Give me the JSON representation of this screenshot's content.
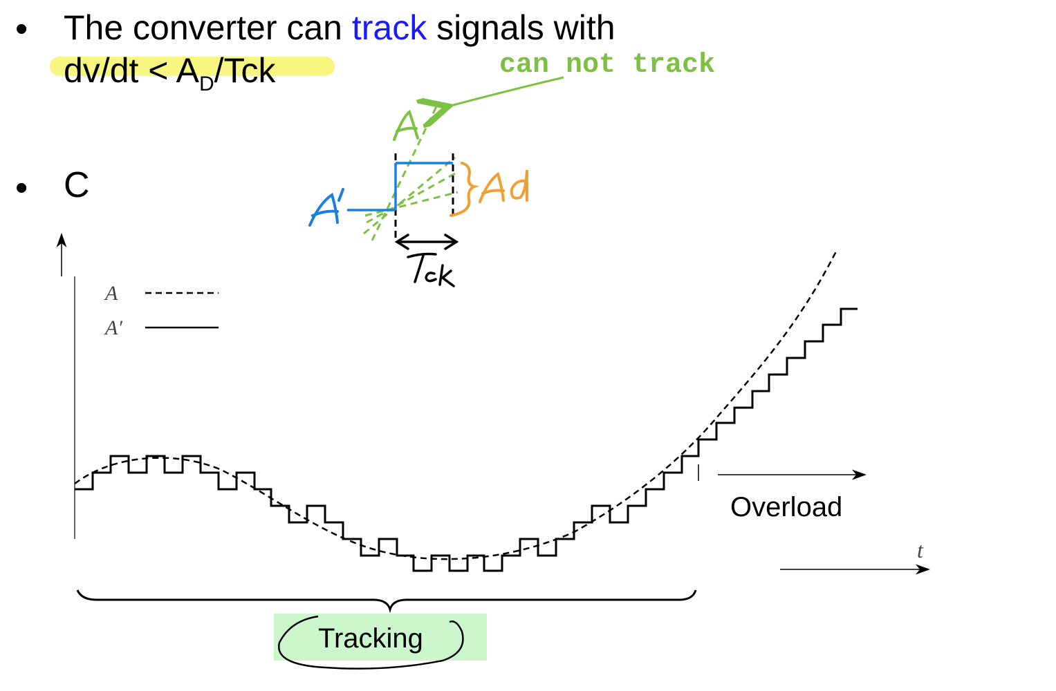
{
  "bullets": {
    "line1_prefix": "The converter can ",
    "line1_emph": "track",
    "line1_suffix": " signals with",
    "line2_a": "dv/dt < A",
    "line2_sub": "D",
    "line2_b": "/Tck",
    "second": "C",
    "marker": "•"
  },
  "annotations": {
    "cannot_track": "can not track",
    "label_A": "A",
    "label_A_prime": "A'",
    "label_Ad": "Ad",
    "label_Tck": "Tck"
  },
  "plot": {
    "legend": [
      {
        "label": "A",
        "style": "dashed"
      },
      {
        "label": "A′",
        "style": "solid"
      }
    ],
    "axis_t": "t",
    "overload": "Overload",
    "tracking": "Tracking"
  },
  "colors": {
    "highlight": "#f5f56b",
    "track_word": "#1a1aff",
    "green": "#7cc142",
    "blue": "#1a7fe0",
    "orange": "#f0a030",
    "tracking_bg": "#ccf7cc"
  }
}
